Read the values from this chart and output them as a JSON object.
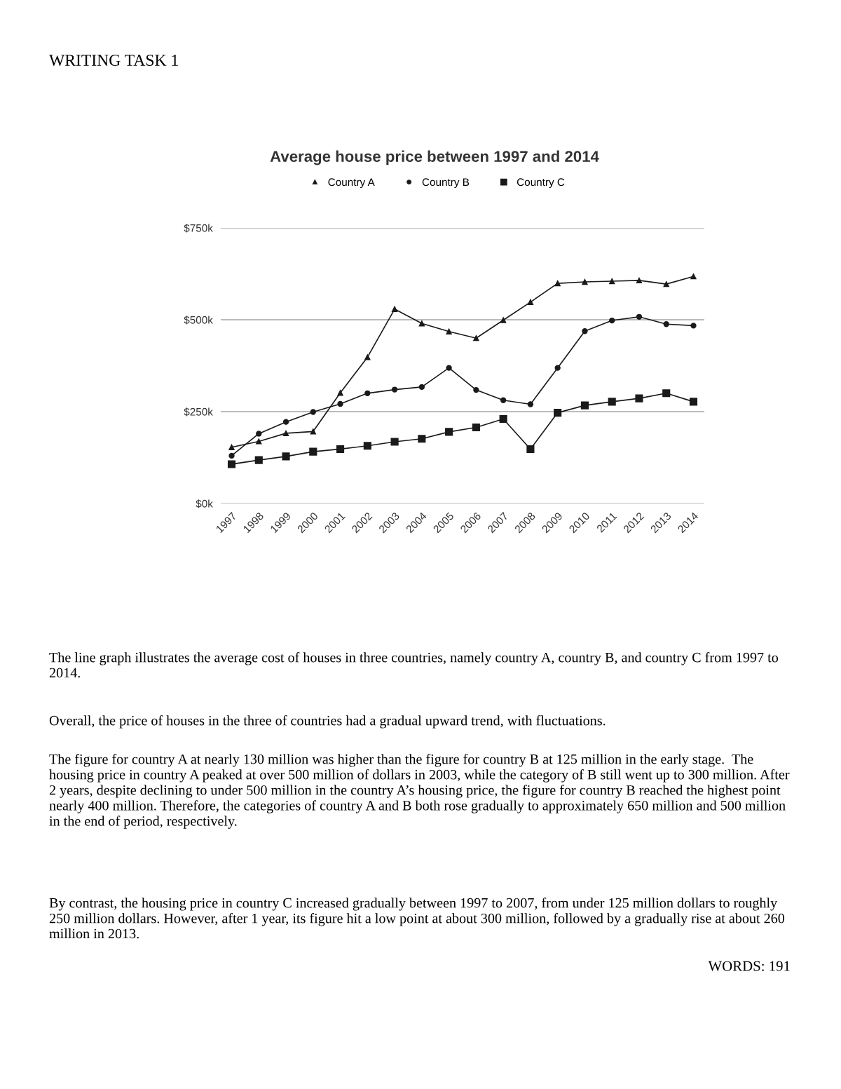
{
  "chart_data": {
    "type": "line",
    "title": "Average house price between 1997 and 2014",
    "categories": [
      "1997",
      "1998",
      "1999",
      "2000",
      "2001",
      "2002",
      "2003",
      "2004",
      "2005",
      "2006",
      "2007",
      "2008",
      "2009",
      "2010",
      "2011",
      "2012",
      "2013",
      "2014"
    ],
    "series": [
      {
        "name": "Country A",
        "color": "#1a1a1a",
        "marker": "triangle",
        "values": [
          153,
          169,
          191,
          196,
          301,
          398,
          529,
          490,
          468,
          450,
          499,
          548,
          599,
          603,
          605,
          607,
          597,
          618
        ]
      },
      {
        "name": "Country B",
        "color": "#1a1a1a",
        "marker": "circle",
        "values": [
          130,
          190,
          222,
          249,
          271,
          300,
          310,
          317,
          369,
          309,
          281,
          270,
          369,
          469,
          498,
          508,
          488,
          484
        ]
      },
      {
        "name": "Country C",
        "color": "#1a1a1a",
        "marker": "square",
        "values": [
          107,
          118,
          128,
          141,
          148,
          157,
          168,
          176,
          195,
          207,
          230,
          148,
          247,
          267,
          277,
          286,
          300,
          277
        ]
      }
    ],
    "ylim": [
      0,
      750
    ],
    "yticks": [
      {
        "value": 0,
        "label": "$0k"
      },
      {
        "value": 250,
        "label": "$250k"
      },
      {
        "value": 500,
        "label": "$500k"
      },
      {
        "value": 750,
        "label": "$750k"
      }
    ],
    "grid": "y",
    "legend": "top",
    "line_style": "solid",
    "annotations": [
      "WRITING TASK 1",
      "The line graph illustrates the average cost of houses in three countries, namely country A, country B, and country C from 1997 to 2014.",
      "Overall, the price of houses in the three of countries had a gradual upward trend, with fluctuations.",
      "The figure for country A at nearly 130 million was higher than the figure for country B at 125 million in the early stage.  The housing price in country A peaked at over 500 million of dollars in 2003, while the category of B still went up to 300 million. After 2 years, despite declining to under 500 million in the country A’s housing price, the figure for country B reached the highest point nearly 400 million. Therefore, the categories of country A and B both rose gradually to approximately 650 million and 500 million in the end of period, respectively.",
      "By contrast, the housing price in country C increased gradually between 1997 to 2007, from under 125 million dollars to roughly 250 million dollars. However, after 1 year, its figure hit a low point at about 300 million, followed by a gradually rise at about 260 million in 2013.",
      "WORDS: 191"
    ]
  }
}
